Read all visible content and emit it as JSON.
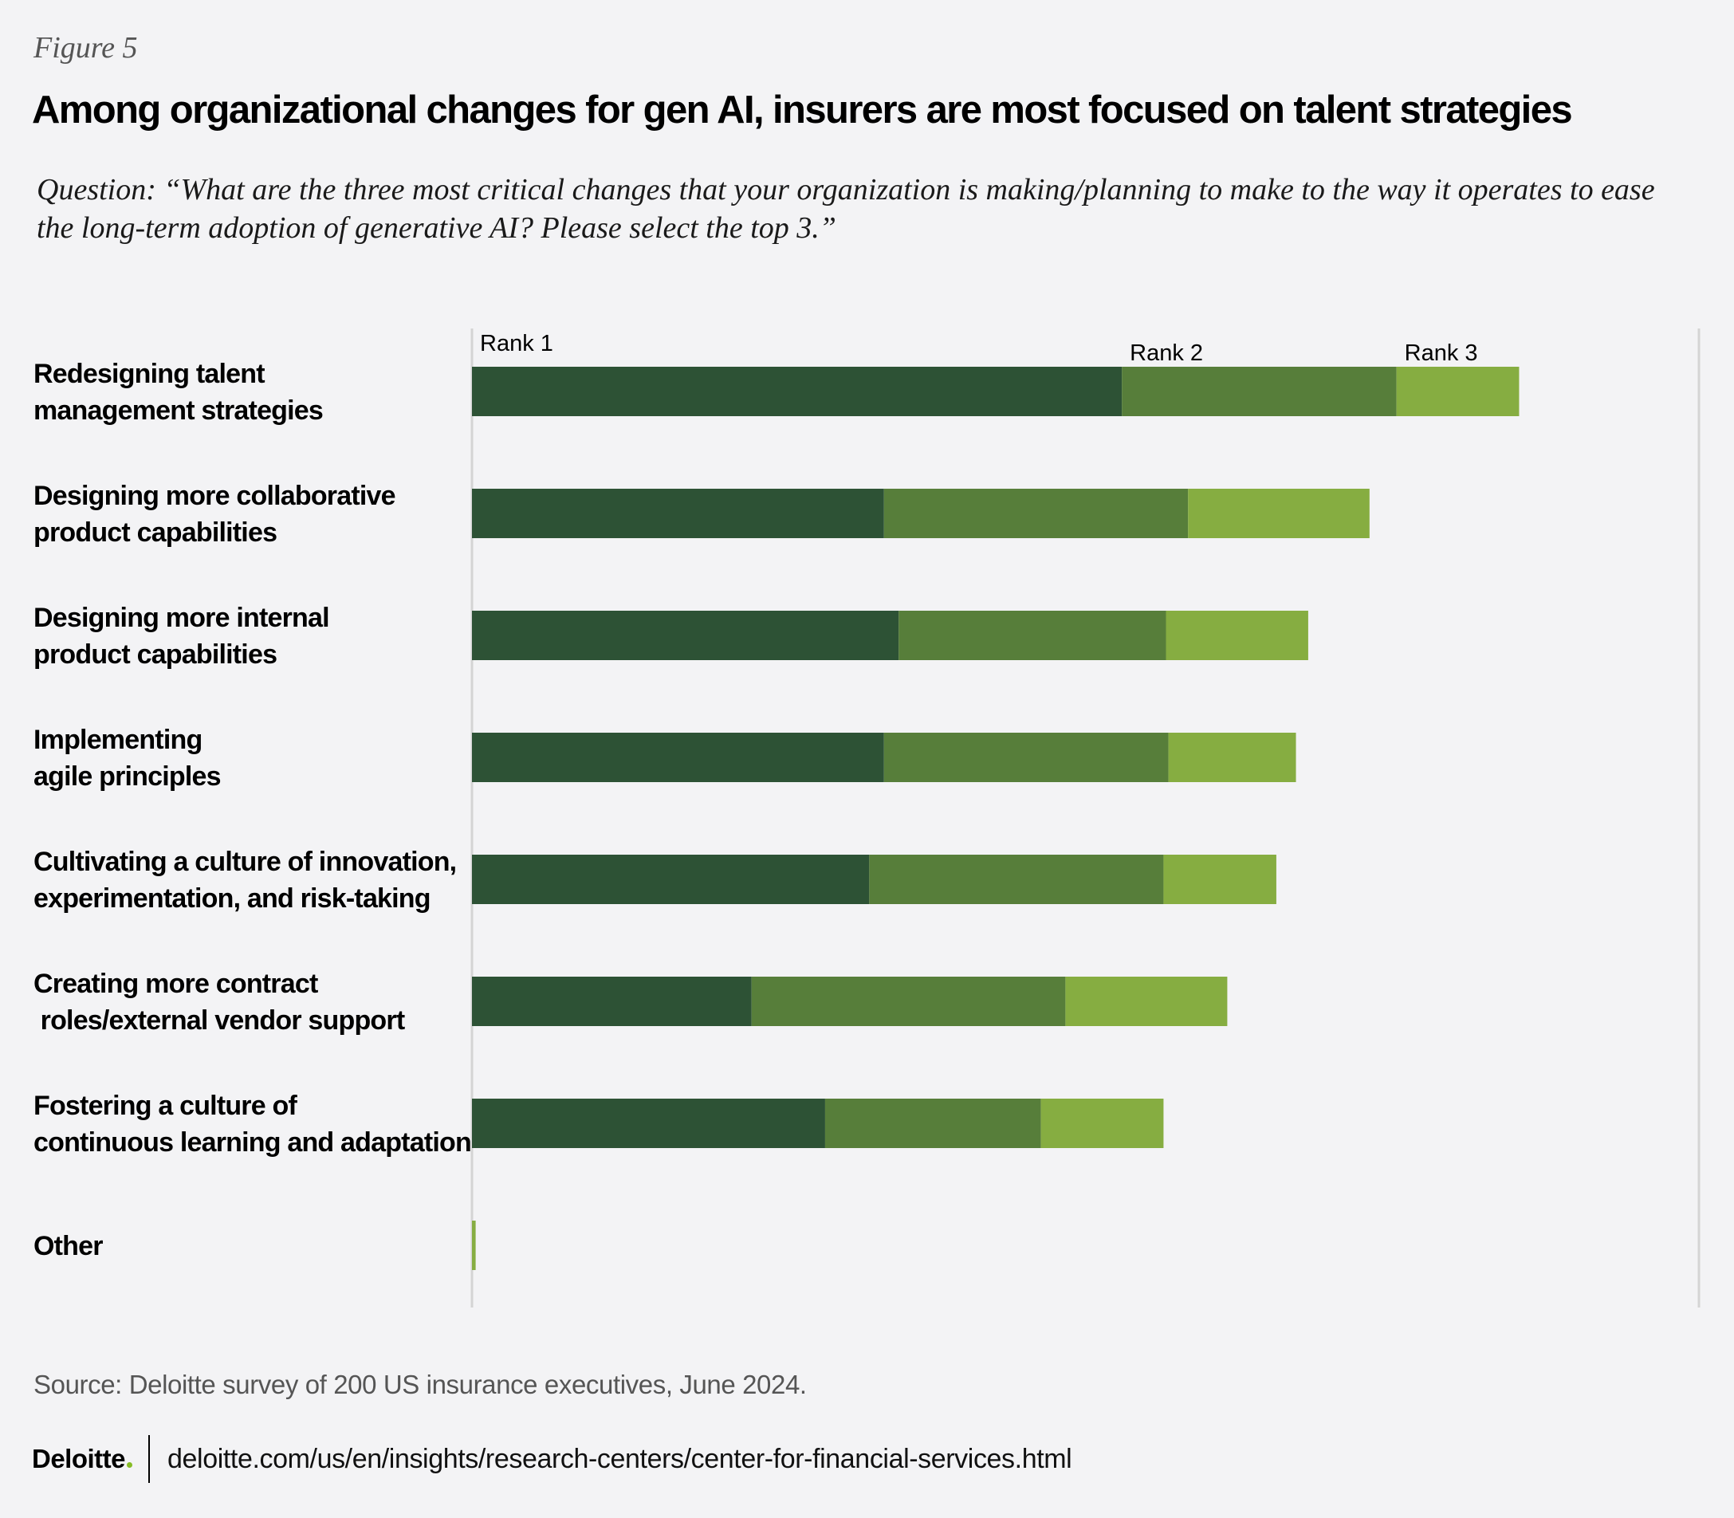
{
  "figure_label": "Figure 5",
  "title": "Among organizational changes for gen AI, insurers are most focused on talent strategies",
  "question": "Question: “What are the three most critical changes that your organization is making/planning to make to the way it operates to ease the long-term adoption of generative AI? Please select the top 3.”",
  "source": "Source: Deloitte survey of 200 US insurance executives, June 2024.",
  "footer": {
    "brand": "Deloitte",
    "url": "deloitte.com/us/en/insights/research-centers/center-for-financial-services.html"
  },
  "colors": {
    "rank1": "#2d5235",
    "rank2": "#577e3a",
    "rank3": "#86ad41",
    "axis": "#d4d4d4",
    "background": "#f3f3f5"
  },
  "chart_data": {
    "type": "bar",
    "orientation": "horizontal",
    "stacked": true,
    "categories": [
      "Redesigning talent\nmanagement strategies",
      "Designing more collaborative\nproduct capabilities",
      "Designing more internal\nproduct capabilities",
      "Implementing\nagile principles",
      "Cultivating a culture of innovation,\nexperimentation, and risk-taking",
      "Creating more contract\n roles/external vendor support",
      "Fostering a culture of\ncontinuous learning and adaptation",
      "Other"
    ],
    "series": [
      {
        "name": "Rank 1",
        "values": [
          26.5,
          16.8,
          17.4,
          16.8,
          16.2,
          11.4,
          14.4,
          0
        ]
      },
      {
        "name": "Rank 2",
        "values": [
          11.2,
          12.4,
          10.9,
          11.6,
          12.0,
          12.8,
          8.8,
          0
        ]
      },
      {
        "name": "Rank 3",
        "values": [
          5.0,
          7.4,
          5.8,
          5.2,
          4.6,
          6.6,
          5.0,
          0.15
        ]
      }
    ],
    "xlim": [
      0,
      50
    ],
    "title": "Among organizational changes for gen AI, insurers are most focused on talent strategies",
    "xlabel": "",
    "ylabel": "",
    "grid": false
  }
}
